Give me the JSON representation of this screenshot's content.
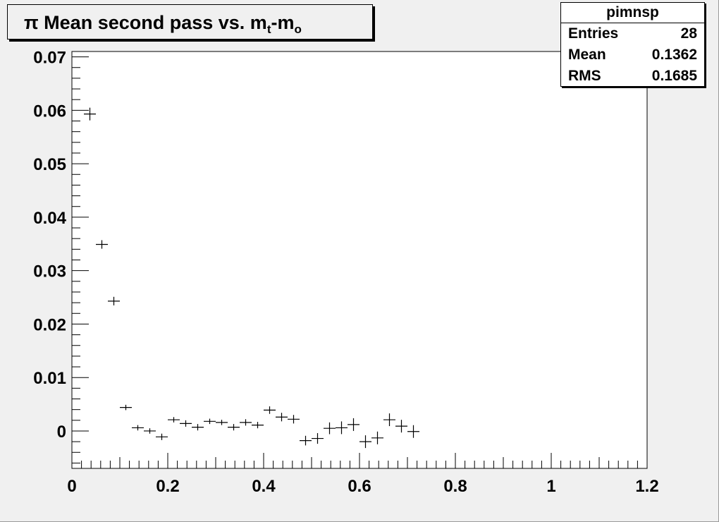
{
  "title": {
    "prefix": "π Mean second pass vs. m",
    "sub1": "t",
    "mid": "-m",
    "sub2": "o"
  },
  "stats": {
    "name": "pimnsp",
    "rows": [
      {
        "label": "Entries",
        "value": "28"
      },
      {
        "label": "Mean",
        "value": "0.1362"
      },
      {
        "label": "RMS",
        "value": "0.1685"
      }
    ]
  },
  "chart_data": {
    "type": "scatter",
    "title": "π Mean second pass vs. mt-mo",
    "xlabel": "",
    "ylabel": "",
    "xlim": [
      0,
      1.2
    ],
    "ylim": [
      -0.007,
      0.071
    ],
    "grid": false,
    "x_ticks": [
      0,
      0.2,
      0.4,
      0.6,
      0.8,
      1,
      1.2
    ],
    "x_tick_labels": [
      "0",
      "0.2",
      "0.4",
      "0.6",
      "0.8",
      "1",
      "1.2"
    ],
    "y_ticks": [
      0,
      0.01,
      0.02,
      0.03,
      0.04,
      0.05,
      0.06,
      0.07
    ],
    "y_tick_labels": [
      "0",
      "0.01",
      "0.02",
      "0.03",
      "0.04",
      "0.05",
      "0.06",
      "0.07"
    ],
    "bin_half_width": 0.0125,
    "series": [
      {
        "x": [
          0.0375,
          0.0625,
          0.0875,
          0.1125,
          0.1375,
          0.1625,
          0.1875,
          0.2125,
          0.2375,
          0.2625,
          0.2875,
          0.3125,
          0.3375,
          0.3625,
          0.3875,
          0.4125,
          0.4375,
          0.4625,
          0.4875,
          0.5125,
          0.5375,
          0.5625,
          0.5875,
          0.6125,
          0.6375,
          0.6625,
          0.6875,
          0.7125
        ],
        "y": [
          0.0593,
          0.0349,
          0.0243,
          0.0044,
          0.0006,
          0.0,
          -0.0011,
          0.0021,
          0.0014,
          0.0007,
          0.0018,
          0.0016,
          0.0007,
          0.0016,
          0.0011,
          0.0039,
          0.0026,
          0.0022,
          -0.0018,
          -0.0014,
          0.0005,
          0.0006,
          0.0012,
          -0.002,
          -0.0013,
          0.0021,
          0.0009,
          -0.0001
        ],
        "yerr": [
          0.008,
          0.0008,
          0.0008,
          0.0005,
          0.0005,
          0.0005,
          0.0006,
          0.0005,
          0.0006,
          0.0006,
          0.0005,
          0.0005,
          0.0006,
          0.0006,
          0.0006,
          0.0007,
          0.0008,
          0.0008,
          0.0009,
          0.001,
          0.0011,
          0.0013,
          0.0014,
          0.0015,
          0.0017,
          0.0024,
          0.002,
          0.0028
        ]
      }
    ]
  }
}
